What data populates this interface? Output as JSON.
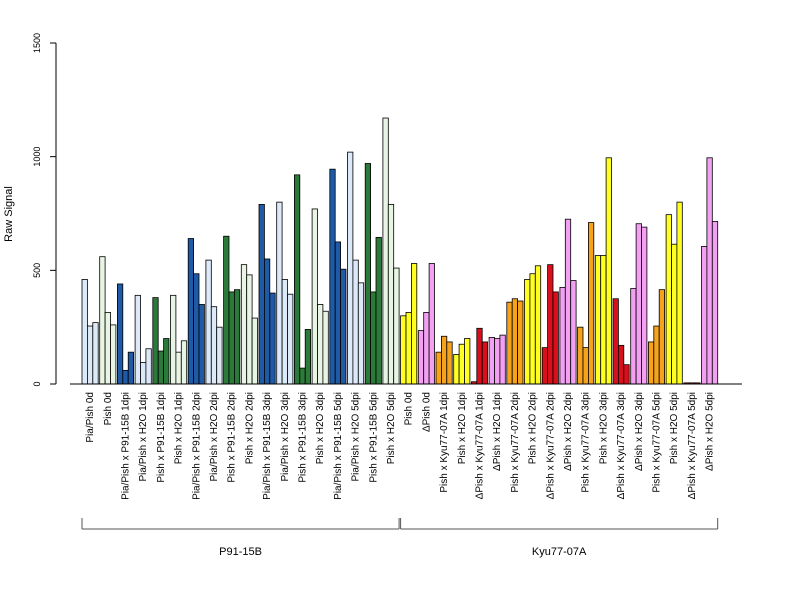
{
  "chart_data": {
    "type": "bar",
    "title": "",
    "xlabel": "",
    "ylabel": "Raw Signal",
    "ylim": [
      0,
      1500
    ],
    "yticks": [
      "0",
      "500",
      "1000",
      "1500"
    ],
    "grid": false,
    "legend": "none",
    "categories": [
      "Pia/Pish 0d",
      "Pish 0d",
      "Pia/Pish x P91-15B 1dpi",
      "Pia/Pish x H2O 1dpi",
      "Pish x P91-15B 1dpi",
      "Pish x H2O 1dpi",
      "Pia/Pish x P91-15B 2dpi",
      "Pia/Pish x H2O 2dpi",
      "Pish x P91-15B 2dpi",
      "Pish x H2O 2dpi",
      "Pia/Pish x P91-15B 3dpi",
      "Pia/Pish x H2O 3dpi",
      "Pish x P91-15B 3dpi",
      "Pish x H2O 3dpi",
      "Pia/Pish x P91-15B 5dpi",
      "Pia/Pish x H2O 5dpi",
      "Pish x P91-15B 5dpi",
      "Pish x H2O 5dpi",
      "Pish 0d",
      "ΔPish 0d",
      "Pish x Kyu77-07A 1dpi",
      "Pish x H2O 1dpi",
      "ΔPish x Kyu77-07A 1dpi",
      "ΔPish x H2O 1dpi",
      "Pish x Kyu77-07A 2dpi",
      "Pish x H2O 2dpi",
      "ΔPish x Kyu77-07A 2dpi",
      "ΔPish x H2O 2dpi",
      "Pish x Kyu77-07A 3dpi",
      "Pish x H2O 3dpi",
      "ΔPish x Kyu77-07A 3dpi",
      "ΔPish x H2O 3dpi",
      "Pish x Kyu77-07A 5dpi",
      "Pish x H2O 5dpi",
      "ΔPish x Kyu77-07A 5dpi",
      "ΔPish x H2O 5dpi"
    ],
    "colors": [
      "#dce9f8",
      "#e9f5e4",
      "#1f5aa6",
      "#dce9f8",
      "#2c7a3a",
      "#e9f5e4",
      "#1f5aa6",
      "#dce9f8",
      "#2c7a3a",
      "#e9f5e4",
      "#1f5aa6",
      "#dce9f8",
      "#2c7a3a",
      "#e9f5e4",
      "#1f5aa6",
      "#dce9f8",
      "#2c7a3a",
      "#e9f5e4",
      "#ffff22",
      "#f3a0f3",
      "#f5a21c",
      "#ffff22",
      "#d9101c",
      "#f3a0f3",
      "#f5a21c",
      "#ffff22",
      "#d9101c",
      "#f3a0f3",
      "#f5a21c",
      "#ffff22",
      "#d9101c",
      "#f3a0f3",
      "#f5a21c",
      "#ffff22",
      "#d9101c",
      "#f3a0f3"
    ],
    "values": [
      [
        460,
        255,
        270
      ],
      [
        560,
        315,
        260
      ],
      [
        440,
        60,
        140
      ],
      [
        390,
        95,
        155
      ],
      [
        380,
        145,
        200
      ],
      [
        390,
        140,
        190
      ],
      [
        640,
        485,
        350
      ],
      [
        545,
        340,
        250
      ],
      [
        650,
        405,
        415
      ],
      [
        525,
        480,
        290
      ],
      [
        790,
        550,
        400
      ],
      [
        800,
        460,
        395
      ],
      [
        920,
        70,
        240
      ],
      [
        770,
        350,
        320
      ],
      [
        945,
        625,
        505
      ],
      [
        1020,
        545,
        445
      ],
      [
        970,
        405,
        645
      ],
      [
        1170,
        790,
        510
      ],
      [
        300,
        315,
        530
      ],
      [
        235,
        315,
        530
      ],
      [
        140,
        210,
        185
      ],
      [
        130,
        175,
        200
      ],
      [
        10,
        245,
        185
      ],
      [
        205,
        200,
        215
      ],
      [
        360,
        375,
        365
      ],
      [
        460,
        485,
        520
      ],
      [
        160,
        525,
        405
      ],
      [
        425,
        725,
        455
      ],
      [
        250,
        160,
        710
      ],
      [
        565,
        565,
        995
      ],
      [
        375,
        170,
        85
      ],
      [
        420,
        705,
        690
      ],
      [
        185,
        255,
        415
      ],
      [
        745,
        615,
        800
      ],
      [
        5,
        5,
        5
      ],
      [
        605,
        995,
        715
      ]
    ],
    "groups": [
      {
        "label": "P91-15B",
        "from": 0,
        "to": 17
      },
      {
        "label": "Kyu77-07A",
        "from": 18,
        "to": 35
      }
    ]
  }
}
